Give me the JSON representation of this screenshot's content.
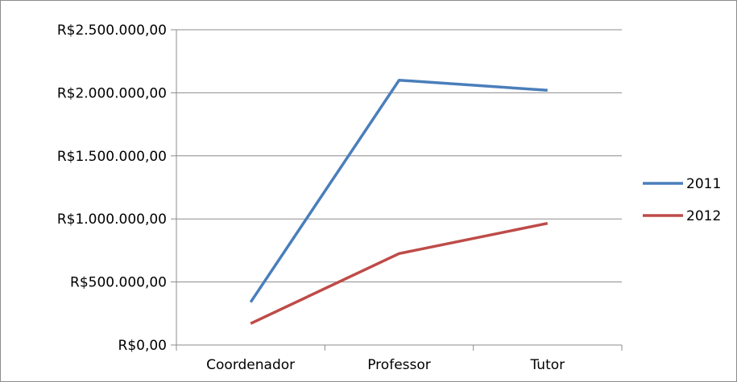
{
  "chart_data": {
    "type": "line",
    "title": "",
    "xlabel": "",
    "ylabel": "",
    "categories": [
      "Coordenador",
      "Professor",
      "Tutor"
    ],
    "series": [
      {
        "name": "2011",
        "color": "#4a7ebb",
        "values": [
          340000,
          2100000,
          2020000
        ]
      },
      {
        "name": "2012",
        "color": "#be4b48",
        "values": [
          170000,
          725000,
          965000
        ]
      }
    ],
    "ylim": [
      0,
      2500000
    ],
    "yticks": [
      0,
      500000,
      1000000,
      1500000,
      2000000,
      2500000
    ],
    "ytick_labels": [
      "R$0,00",
      "R$500.000,00",
      "R$1.000.000,00",
      "R$1.500.000,00",
      "R$2.000.000,00",
      "R$2.500.000,00"
    ],
    "grid": "horizontal",
    "legend_position": "right"
  }
}
